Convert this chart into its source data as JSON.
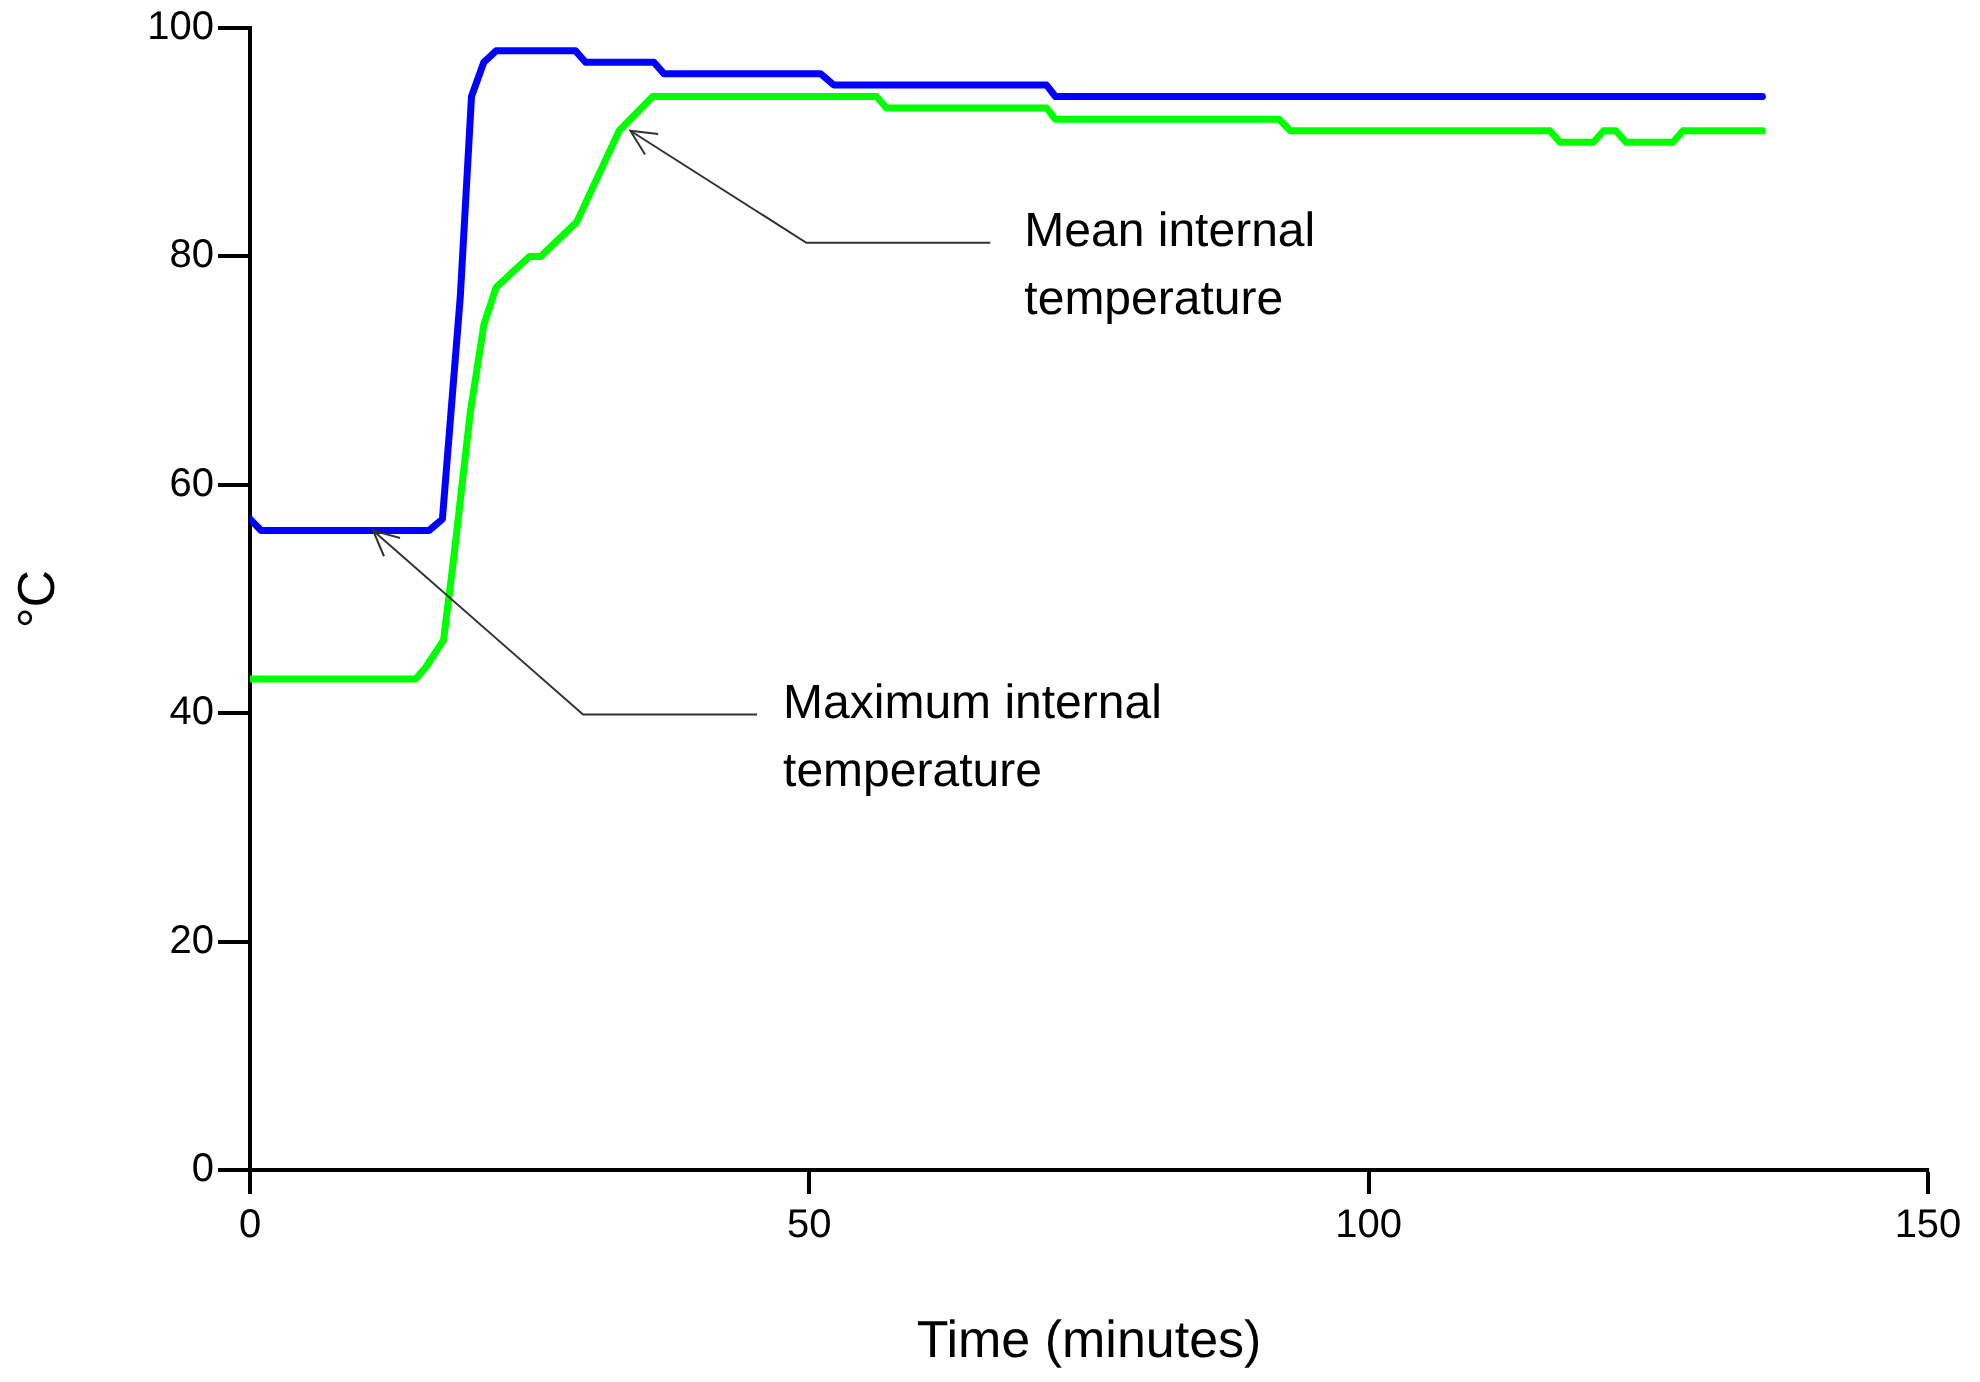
{
  "chart_data": {
    "type": "line",
    "xlabel": "Time (minutes)",
    "ylabel": "°C",
    "xlim": [
      0,
      150
    ],
    "xticks": [
      0,
      50,
      100,
      150
    ],
    "ylim": [
      0,
      100
    ],
    "yticks": [
      0,
      20,
      40,
      60,
      80,
      100
    ],
    "grid": false,
    "legend": false,
    "marker": "none",
    "line_style": "solid",
    "series": [
      {
        "color": "#0000ff",
        "x": [
          0,
          1,
          16,
          17.2,
          18.8,
          19.8,
          20.9,
          22,
          29.1,
          30,
          36.1,
          37,
          51,
          52.2,
          71.2,
          72,
          135.2
        ],
        "values": [
          57,
          56,
          56,
          57,
          76.5,
          94,
          97,
          98,
          98,
          97,
          97,
          96,
          96,
          95,
          95,
          94,
          94
        ]
      },
      {
        "color": "#00ff00",
        "x": [
          0,
          14.8,
          15.7,
          17.3,
          18.2,
          19.7,
          20.9,
          22,
          25,
          26,
          29.2,
          33,
          36,
          56,
          56.9,
          71.2,
          72,
          92,
          93,
          116.2,
          117.1,
          120.1,
          121,
          122.1,
          123,
          127.2,
          128.1,
          135.2
        ],
        "values": [
          43,
          43,
          44,
          46.4,
          53.5,
          66.4,
          74,
          77.3,
          80,
          80,
          83,
          91,
          94,
          94,
          93,
          93,
          92,
          92,
          91,
          91,
          90,
          90,
          91,
          91,
          90,
          90,
          91,
          91
        ]
      }
    ],
    "annotations": [
      {
        "text": "Mean internal temperature",
        "x": 34,
        "y": 91
      },
      {
        "text": "Maximum internal temperature",
        "x": 11,
        "y": 56
      }
    ]
  }
}
